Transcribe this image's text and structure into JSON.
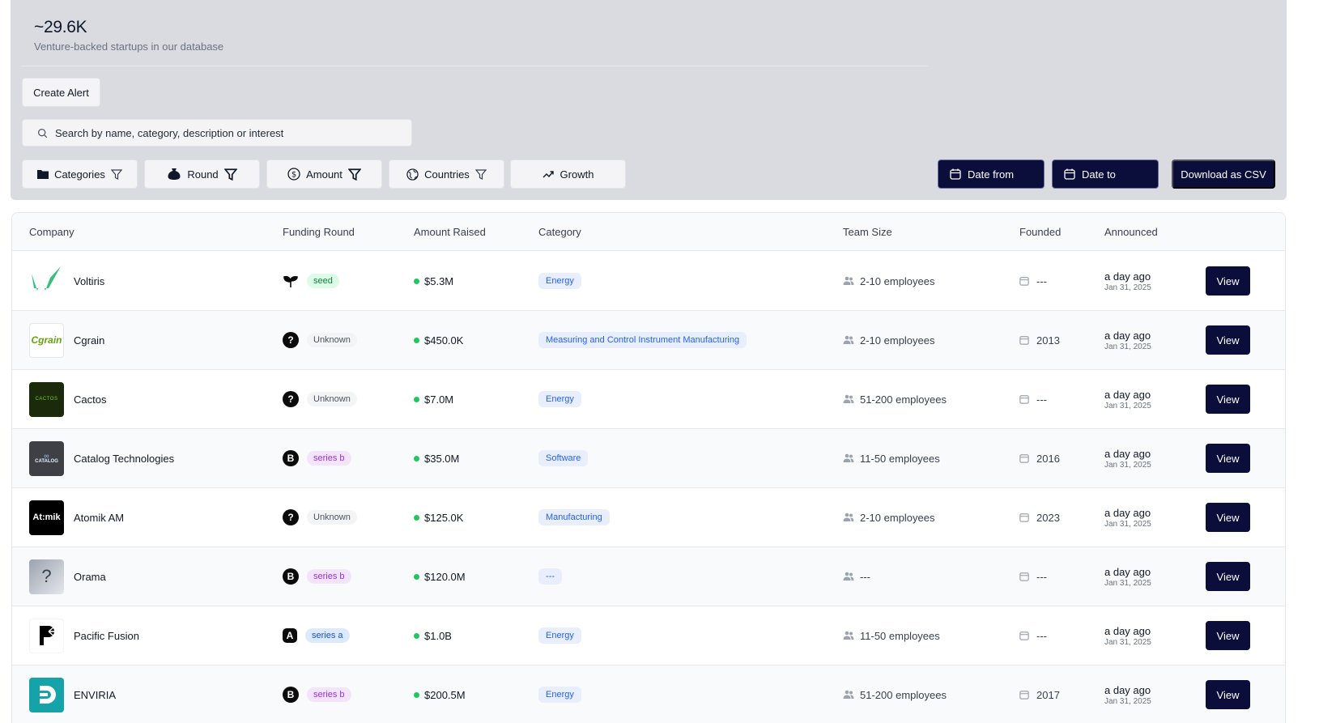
{
  "stats": {
    "value": "~29.6K",
    "label": "Venture-backed startups in our database"
  },
  "actions": {
    "create_alert": "Create Alert"
  },
  "search": {
    "placeholder": "Search by name, category, description or interest"
  },
  "filters": [
    {
      "label": "Categories",
      "icon": "folder-icon"
    },
    {
      "label": "Round",
      "icon": "money-bag-icon"
    },
    {
      "label": "Amount",
      "icon": "dollar-circle-icon"
    },
    {
      "label": "Countries",
      "icon": "globe-icon"
    },
    {
      "label": "Growth",
      "icon": "trend-up-icon"
    }
  ],
  "date_from": "Date from",
  "date_to": "Date to",
  "download": "Download as CSV",
  "columns": [
    "Company",
    "Funding Round",
    "Amount Raised",
    "Category",
    "Team Size",
    "Founded",
    "Announced"
  ],
  "view_label": "View",
  "rows": [
    {
      "company": "Voltiris",
      "logo_text": "",
      "round_icon": "seedling-icon",
      "round": "seed",
      "amount": "$5.3M",
      "category": "Energy",
      "team": "2-10 employees",
      "founded": "---",
      "announced": "a day ago",
      "announced_date": "Jan 31, 2025"
    },
    {
      "company": "Cgrain",
      "logo_text": "Cgrain",
      "round_icon": "?",
      "round": "Unknown",
      "amount": "$450.0K",
      "category": "Measuring and Control Instrument Manufacturing",
      "team": "2-10 employees",
      "founded": "2013",
      "announced": "a day ago",
      "announced_date": "Jan 31, 2025"
    },
    {
      "company": "Cactos",
      "logo_text": "CACTOS",
      "round_icon": "?",
      "round": "Unknown",
      "amount": "$7.0M",
      "category": "Energy",
      "team": "51-200 employees",
      "founded": "---",
      "announced": "a day ago",
      "announced_date": "Jan 31, 2025"
    },
    {
      "company": "Catalog Technologies",
      "logo_text": "CATALOG",
      "round_icon": "B",
      "round": "series b",
      "amount": "$35.0M",
      "category": "Software",
      "team": "11-50 employees",
      "founded": "2016",
      "announced": "a day ago",
      "announced_date": "Jan 31, 2025"
    },
    {
      "company": "Atomik AM",
      "logo_text": "At:mik",
      "round_icon": "?",
      "round": "Unknown",
      "amount": "$125.0K",
      "category": "Manufacturing",
      "team": "2-10 employees",
      "founded": "2023",
      "announced": "a day ago",
      "announced_date": "Jan 31, 2025"
    },
    {
      "company": "Orama",
      "logo_text": "?",
      "round_icon": "B",
      "round": "series b",
      "amount": "$120.0M",
      "category": "---",
      "team": "---",
      "founded": "---",
      "announced": "a day ago",
      "announced_date": "Jan 31, 2025"
    },
    {
      "company": "Pacific Fusion",
      "logo_text": "",
      "round_icon": "A",
      "round": "series a",
      "amount": "$1.0B",
      "category": "Energy",
      "team": "11-50 employees",
      "founded": "---",
      "announced": "a day ago",
      "announced_date": "Jan 31, 2025"
    },
    {
      "company": "ENVIRIA",
      "logo_text": "",
      "round_icon": "B",
      "round": "series b",
      "amount": "$200.5M",
      "category": "Energy",
      "team": "51-200 employees",
      "founded": "2017",
      "announced": "a day ago",
      "announced_date": "Jan 31, 2025"
    }
  ],
  "colors": {
    "primary_dark": "#0b0d3b",
    "panel_bg": "#d9dbe0",
    "amount_dot": "#22c55e"
  }
}
